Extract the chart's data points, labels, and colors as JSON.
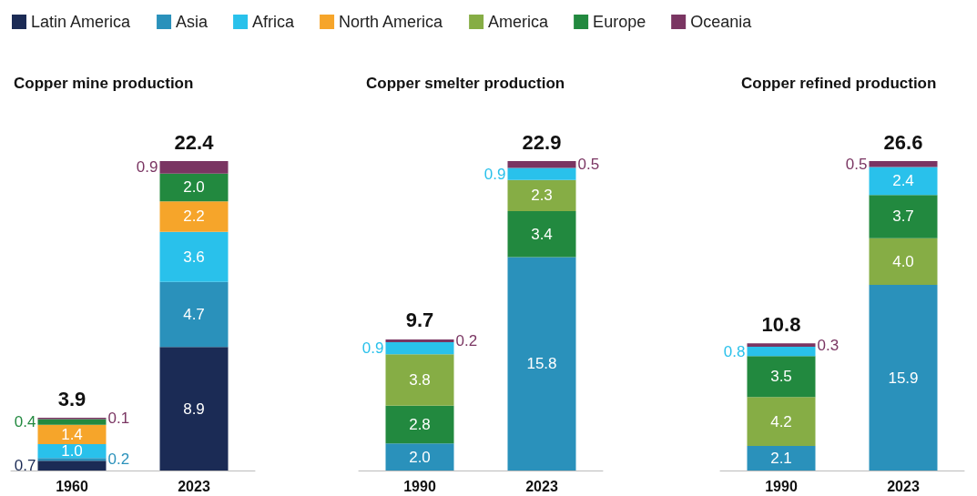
{
  "chart_data": [
    {
      "type": "bar",
      "title": "Copper mine production",
      "categories": [
        "1960",
        "2023"
      ],
      "stacked": true,
      "legend": "top",
      "totals": [
        "3.9",
        "22.4"
      ],
      "series": [
        {
          "name": "Latin America",
          "color": "#1b2b55",
          "values": [
            0.7,
            8.9
          ],
          "value_labels": [
            "0.7",
            "8.9"
          ]
        },
        {
          "name": "Asia",
          "color": "#2a91bb",
          "values": [
            0.2,
            4.7
          ],
          "value_labels": [
            "0.2",
            "4.7"
          ]
        },
        {
          "name": "Africa",
          "color": "#29c1eb",
          "values": [
            1.0,
            3.6
          ],
          "value_labels": [
            "1.0",
            "3.6"
          ]
        },
        {
          "name": "North America",
          "color": "#f6a52a",
          "values": [
            1.4,
            2.2
          ],
          "value_labels": [
            "1.4",
            "2.2"
          ]
        },
        {
          "name": "Europe",
          "color": "#22893f",
          "values": [
            0.4,
            2.0
          ],
          "value_labels": [
            "0.4",
            "2.0"
          ]
        },
        {
          "name": "Oceania",
          "color": "#7a3562",
          "values": [
            0.1,
            0.9
          ],
          "value_labels": [
            "0.1",
            "0.9"
          ]
        }
      ]
    },
    {
      "type": "bar",
      "title": "Copper smelter production",
      "categories": [
        "1990",
        "2023"
      ],
      "stacked": true,
      "totals": [
        "9.7",
        "22.9"
      ],
      "series": [
        {
          "name": "Asia",
          "color": "#2a91bb",
          "values": [
            2.0,
            15.8
          ],
          "value_labels": [
            "2.0",
            "15.8"
          ]
        },
        {
          "name": "Europe",
          "color": "#22893f",
          "values": [
            2.8,
            3.4
          ],
          "value_labels": [
            "2.8",
            "3.4"
          ]
        },
        {
          "name": "America",
          "color": "#86ad45",
          "values": [
            3.8,
            2.3
          ],
          "value_labels": [
            "3.8",
            "2.3"
          ]
        },
        {
          "name": "Africa",
          "color": "#29c1eb",
          "values": [
            0.9,
            0.9
          ],
          "value_labels": [
            "0.9",
            "0.9"
          ]
        },
        {
          "name": "Oceania",
          "color": "#7a3562",
          "values": [
            0.2,
            0.5
          ],
          "value_labels": [
            "0.2",
            "0.5"
          ]
        }
      ]
    },
    {
      "type": "bar",
      "title": "Copper refined production",
      "categories": [
        "1990",
        "2023"
      ],
      "stacked": true,
      "totals": [
        "10.8",
        "26.6"
      ],
      "series": [
        {
          "name": "Asia",
          "color": "#2a91bb",
          "values": [
            2.1,
            15.9
          ],
          "value_labels": [
            "2.1",
            "15.9"
          ]
        },
        {
          "name": "America",
          "color": "#86ad45",
          "values": [
            4.2,
            4.0
          ],
          "value_labels": [
            "4.2",
            "4.0"
          ]
        },
        {
          "name": "Europe",
          "color": "#22893f",
          "values": [
            3.5,
            3.7
          ],
          "value_labels": [
            "3.5",
            "3.7"
          ]
        },
        {
          "name": "Africa",
          "color": "#29c1eb",
          "values": [
            0.8,
            2.4
          ],
          "value_labels": [
            "0.8",
            "2.4"
          ]
        },
        {
          "name": "Oceania",
          "color": "#7a3562",
          "values": [
            0.3,
            0.5
          ],
          "value_labels": [
            "0.3",
            "0.5"
          ]
        }
      ]
    }
  ]
}
